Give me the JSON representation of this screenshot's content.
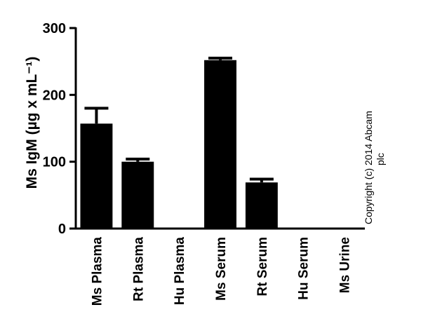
{
  "chart_data": {
    "type": "bar",
    "categories": [
      "Ms Plasma",
      "Rt Plasma",
      "Hu Plasma",
      "Ms Serum",
      "Rt Serum",
      "Hu Serum",
      "Ms Urine"
    ],
    "values": [
      157,
      100,
      0,
      252,
      69,
      0,
      0
    ],
    "error_upper": [
      180,
      104,
      0,
      255,
      74,
      0,
      0
    ],
    "ylabel": "Ms IgM (µg x mL⁻¹)",
    "ylim": [
      0,
      300
    ],
    "yticks": [
      "0",
      "100",
      "200",
      "300"
    ],
    "grid": false,
    "bar_color": "#000000",
    "copyright_line1": "Copyright (c) 2014 Abcam",
    "copyright_line2": "plc"
  }
}
